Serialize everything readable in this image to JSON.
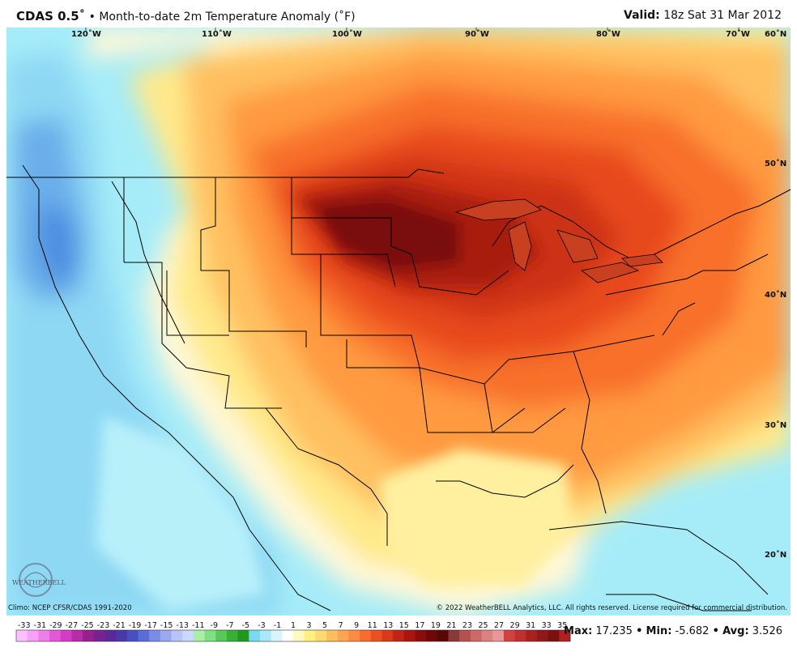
{
  "header": {
    "model": "CDAS 0.5˚",
    "bullet": " • ",
    "title": "Month-to-date 2m Temperature Anomaly (˚F)",
    "valid_label": "Valid:",
    "valid_time": " 18z Sat 31 Mar 2012"
  },
  "map": {
    "longitude_labels": [
      "120˚W",
      "110˚W",
      "100˚W",
      "90˚W",
      "80˚W",
      "70˚W"
    ],
    "latitude_labels": [
      "60˚N",
      "50˚N",
      "40˚N",
      "30˚N",
      "20˚N"
    ],
    "logo_text": "WEATHERBELL"
  },
  "footer": {
    "climo": "Climo: NCEP CFSR/CDAS 1991-2020",
    "copyright": "© 2022 WeatherBELL Analytics, LLC. All rights reserved. License required for commercial distribution."
  },
  "colorbar": {
    "ticks": [
      "-33",
      "-31",
      "-29",
      "-27",
      "-25",
      "-23",
      "-21",
      "-19",
      "-17",
      "-15",
      "-13",
      "-11",
      "-9",
      "-7",
      "-5",
      "-3",
      "-1",
      "1",
      "3",
      "5",
      "7",
      "9",
      "11",
      "13",
      "15",
      "17",
      "19",
      "21",
      "23",
      "25",
      "27",
      "29",
      "31",
      "33",
      "35"
    ],
    "colors": [
      "#ffc0ff",
      "#f7a0f7",
      "#ee7ee9",
      "#e458d8",
      "#d43cc4",
      "#b82ca8",
      "#96208e",
      "#7a2090",
      "#5a2898",
      "#4838a8",
      "#4650c0",
      "#5a6cd8",
      "#7a8ce8",
      "#9aa8f0",
      "#b8c4f8",
      "#c8d8ff",
      "#a8f0a8",
      "#80e080",
      "#58c858",
      "#38b038",
      "#209820",
      "#7ad8f0",
      "#a8e8f8",
      "#d8f4fc",
      "#ffffff",
      "#fff8c0",
      "#fff080",
      "#ffd870",
      "#ffbe60",
      "#ffa450",
      "#ff8a40",
      "#f86c30",
      "#ec5020",
      "#d83a18",
      "#c02414",
      "#a81410",
      "#8c0c0c",
      "#700808",
      "#5a0606",
      "#8a3838",
      "#b85050",
      "#cc6868",
      "#dc8080",
      "#e89898",
      "#d44040",
      "#c03030",
      "#a82020",
      "#901818",
      "#7a1010",
      "#b02020"
    ]
  },
  "stats": {
    "max_label": "Max:",
    "max": "17.235",
    "min_label": "Min:",
    "min": "-5.682",
    "avg_label": "Avg:",
    "avg": "3.526"
  }
}
